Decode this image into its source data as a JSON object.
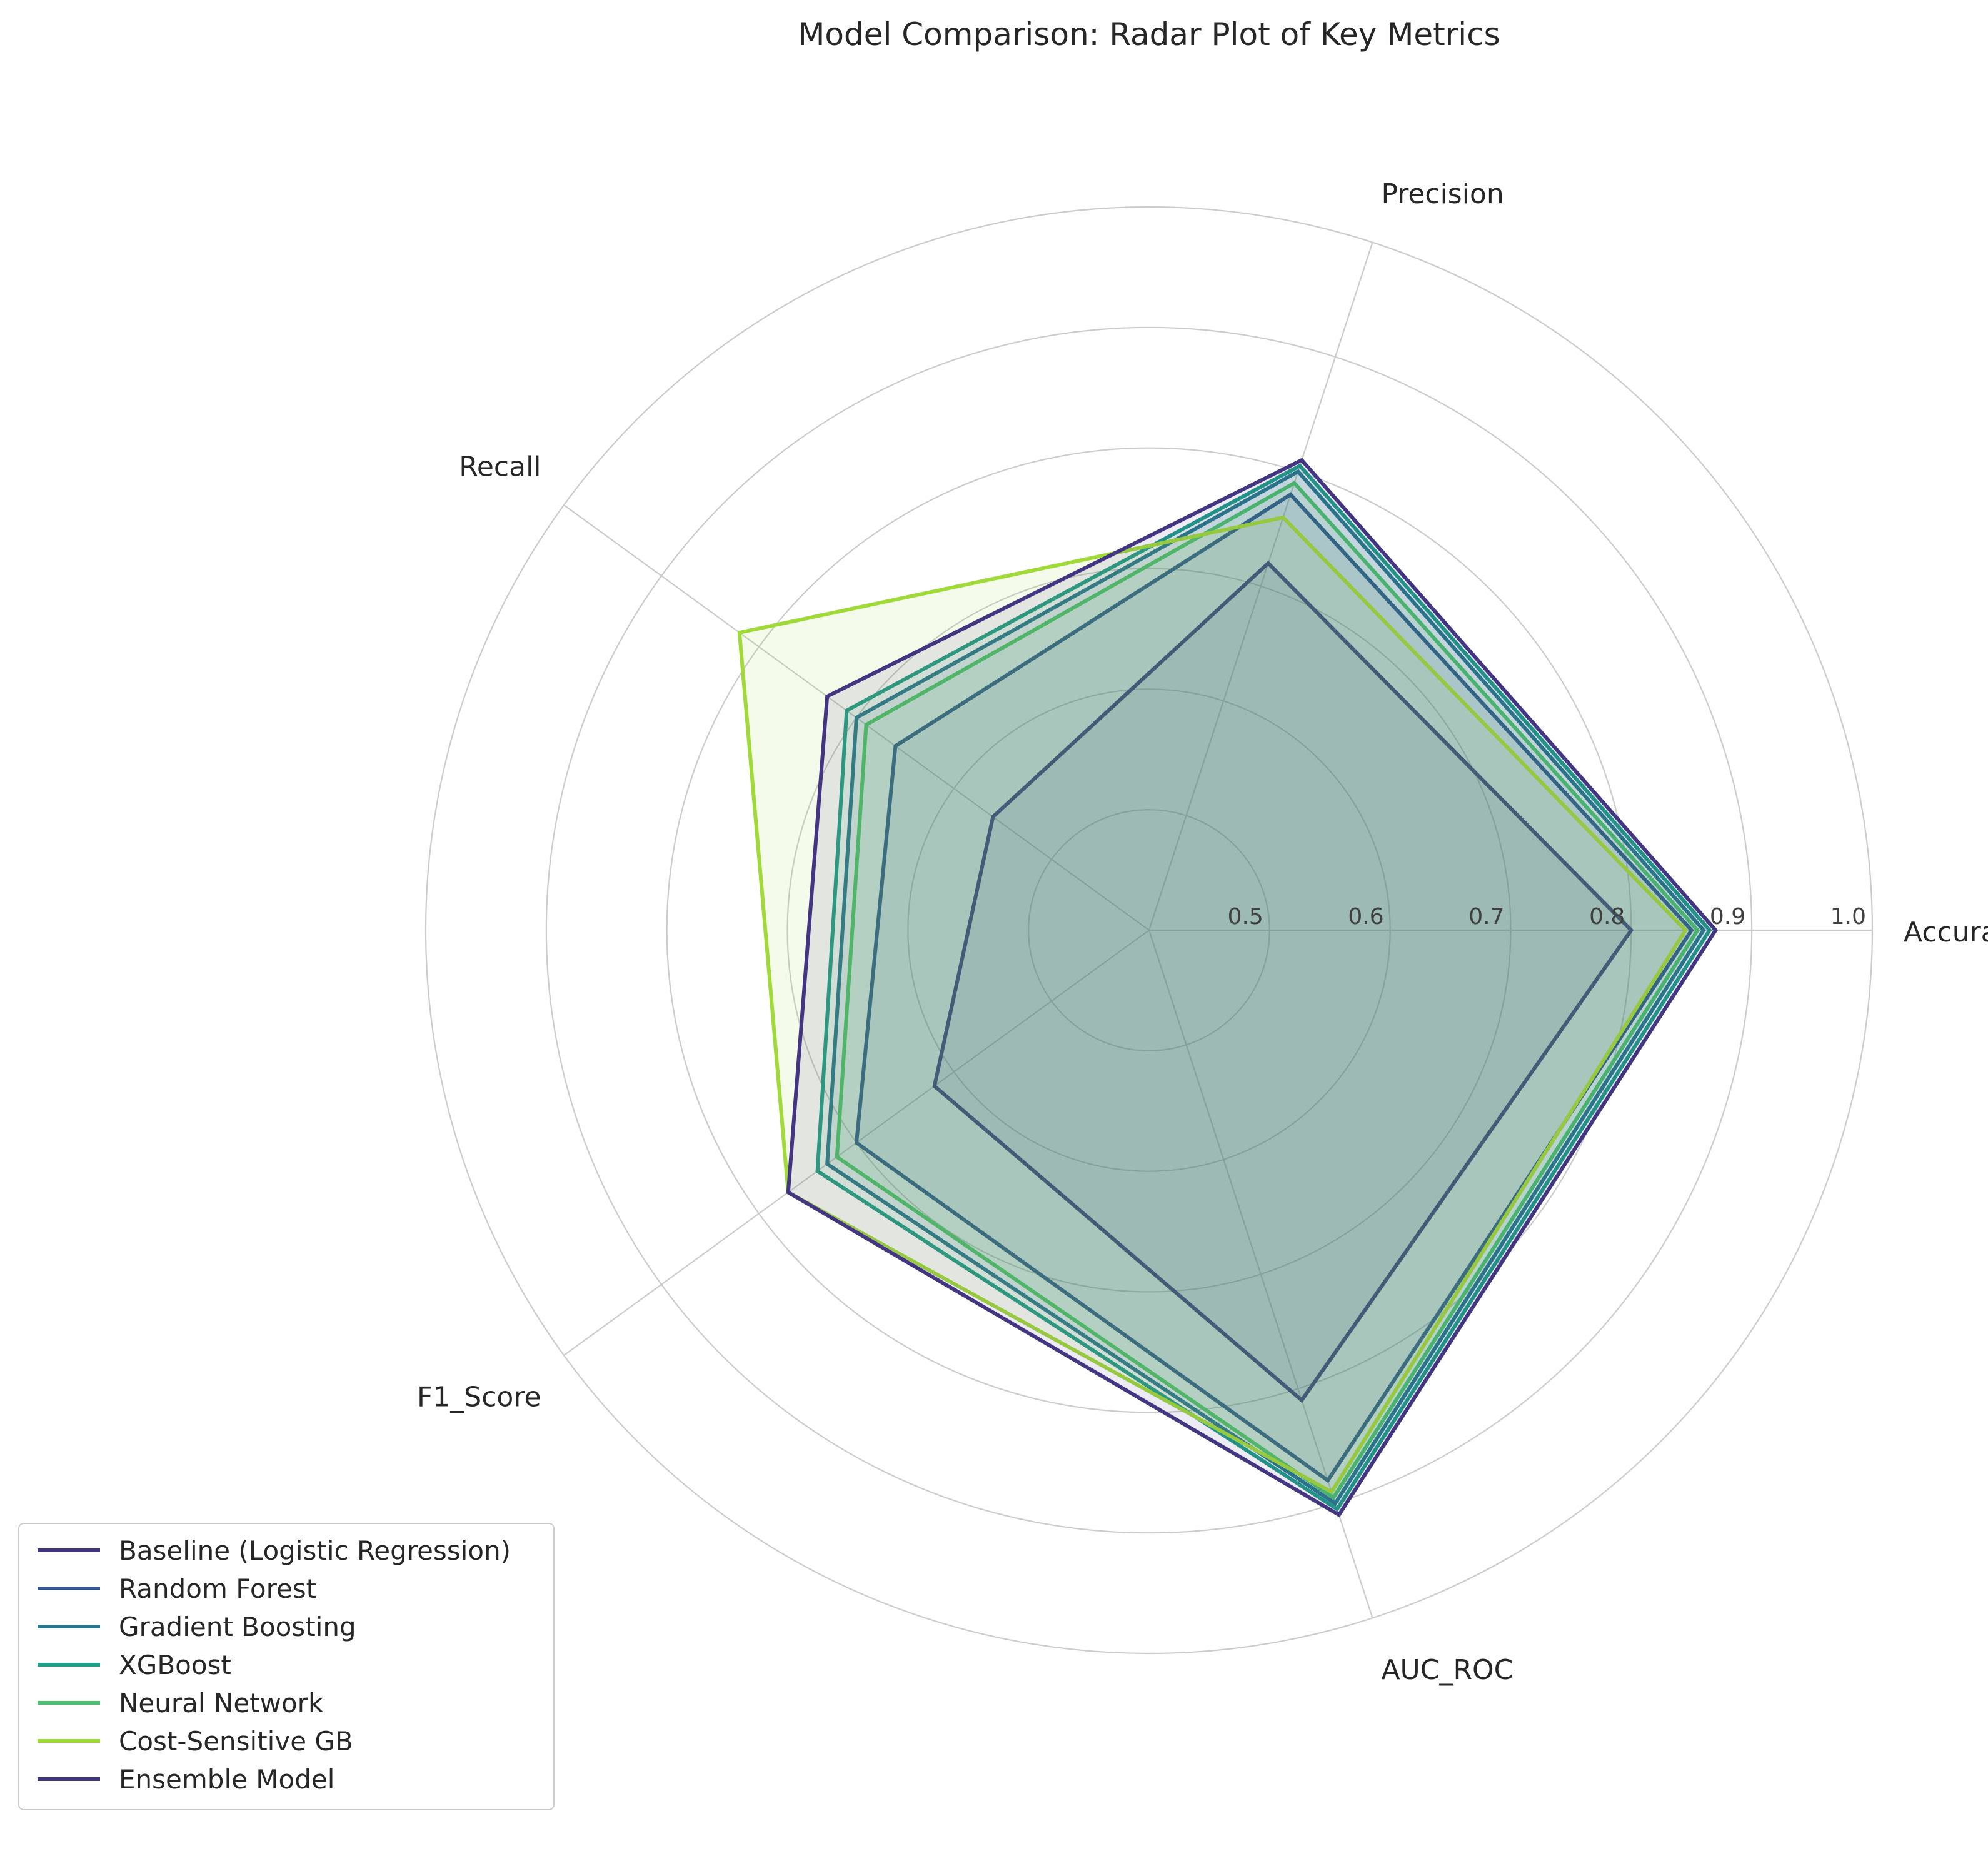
{
  "chart_data": {
    "type": "radar",
    "title": "Model Comparison: Radar Plot of Key Metrics",
    "axes": [
      "Accuracy",
      "Precision",
      "Recall",
      "F1_Score",
      "AUC_ROC"
    ],
    "rlim": [
      0.4,
      1.0
    ],
    "rticks": [
      0.5,
      0.6,
      0.7,
      0.8,
      0.9,
      1.0
    ],
    "rtick_labels": [
      "0.5",
      "0.6",
      "0.7",
      "0.8",
      "0.9",
      "1.0"
    ],
    "grid": true,
    "legend_position": "lower-left",
    "series": [
      {
        "name": "Baseline (Logistic Regression)",
        "values": [
          0.8,
          0.72,
          0.56,
          0.62,
          0.81
        ],
        "color": "#433581"
      },
      {
        "name": "Random Forest",
        "values": [
          0.85,
          0.78,
          0.66,
          0.7,
          0.88
        ],
        "color": "#32568c"
      },
      {
        "name": "Gradient Boosting",
        "values": [
          0.86,
          0.8,
          0.7,
          0.73,
          0.9
        ],
        "color": "#2a788e"
      },
      {
        "name": "XGBoost",
        "values": [
          0.865,
          0.805,
          0.71,
          0.74,
          0.905
        ],
        "color": "#1f9e89"
      },
      {
        "name": "Neural Network",
        "values": [
          0.855,
          0.79,
          0.69,
          0.72,
          0.895
        ],
        "color": "#4ac16d"
      },
      {
        "name": "Cost-Sensitive GB",
        "values": [
          0.845,
          0.76,
          0.82,
          0.77,
          0.89
        ],
        "color": "#a0da39"
      },
      {
        "name": "Ensemble Model",
        "values": [
          0.87,
          0.81,
          0.73,
          0.77,
          0.91
        ],
        "color": "#433581"
      }
    ]
  }
}
